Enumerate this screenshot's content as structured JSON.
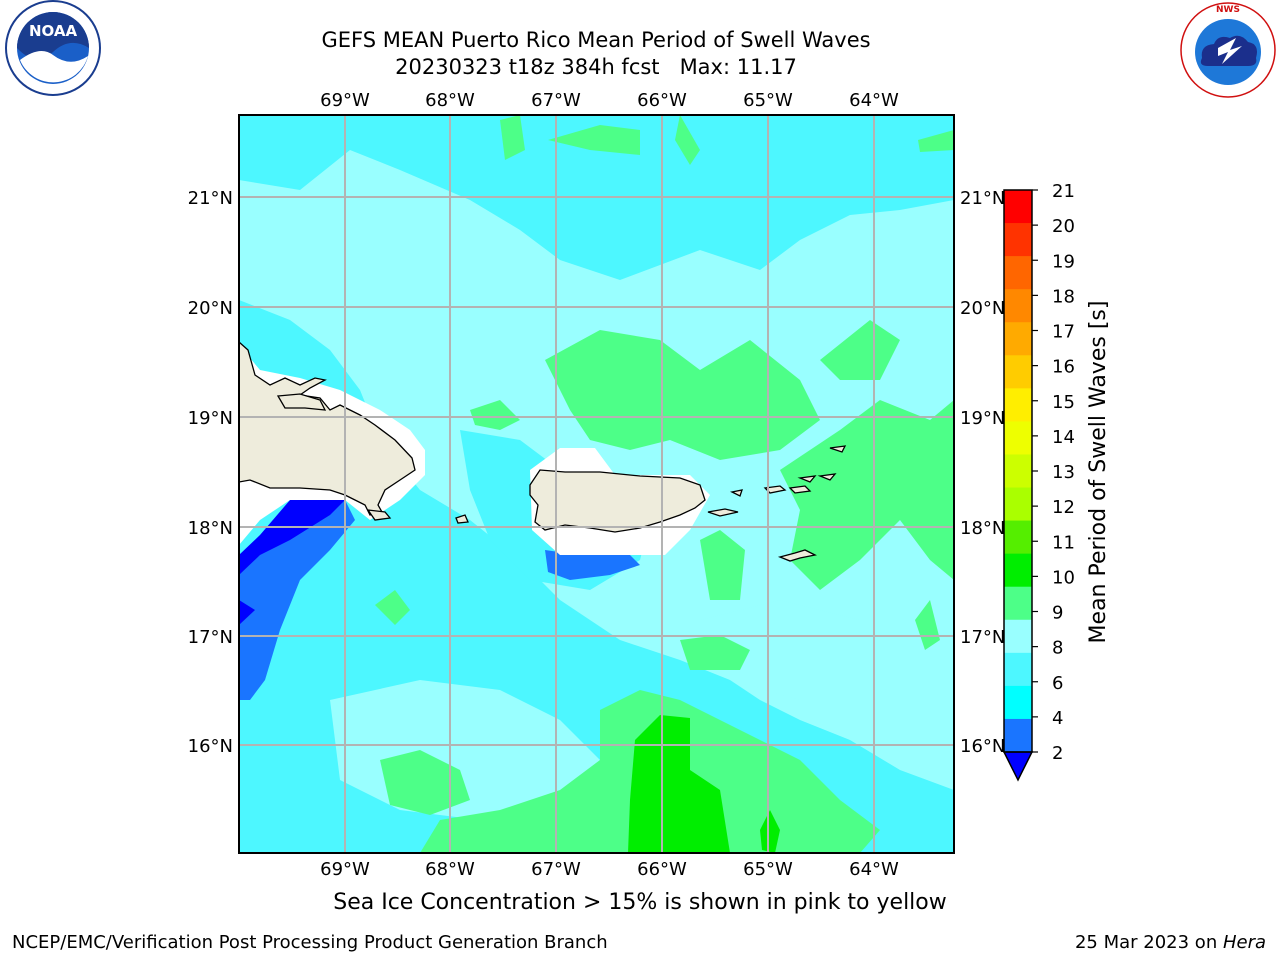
{
  "title": {
    "line1": "GEFS MEAN Puerto Rico Mean Period of Swell Waves",
    "line2": "20230323 t18z 384h fcst   Max: 11.17"
  },
  "map": {
    "lon_labels": [
      "69°W",
      "68°W",
      "67°W",
      "66°W",
      "65°W",
      "64°W"
    ],
    "lat_labels": [
      "21°N",
      "20°N",
      "19°N",
      "18°N",
      "17°N",
      "16°N"
    ],
    "colors": {
      "ocean_light": "#99ffff",
      "ocean_cyan": "#4df7ff",
      "ocean_teal": "#00ffff",
      "ocean_blue": "#1a75ff",
      "ocean_darkblue": "#0000ff",
      "swell_green": "#4dff88",
      "swell_bright_green": "#00ee00",
      "land": "#eeecdc",
      "grid": "#b3b3b3"
    }
  },
  "colorbar": {
    "label": "Mean Period of Swell Waves [s]",
    "ticks": [
      "21",
      "20",
      "19",
      "18",
      "17",
      "16",
      "15",
      "14",
      "13",
      "12",
      "11",
      "10",
      "9",
      "8",
      "6",
      "4",
      "2"
    ],
    "colors": [
      "#ff0000",
      "#ff3300",
      "#ff6600",
      "#ff8800",
      "#ffaa00",
      "#ffcc00",
      "#ffee00",
      "#eeff00",
      "#ccff00",
      "#aaff00",
      "#55ee00",
      "#00ee00",
      "#4dff88",
      "#99ffff",
      "#4df7ff",
      "#00ffff",
      "#1a75ff",
      "#0000ff"
    ]
  },
  "footer": {
    "note": "Sea Ice Concentration > 15% is shown in pink to yellow",
    "left": "NCEP/EMC/Verification Post Processing Product Generation Branch",
    "date": "25 Mar 2023 on ",
    "machine": "Hera"
  },
  "logos": {
    "noaa_text": "NOAA",
    "nws_text": "NATIONAL WEATHER SERVICE"
  }
}
